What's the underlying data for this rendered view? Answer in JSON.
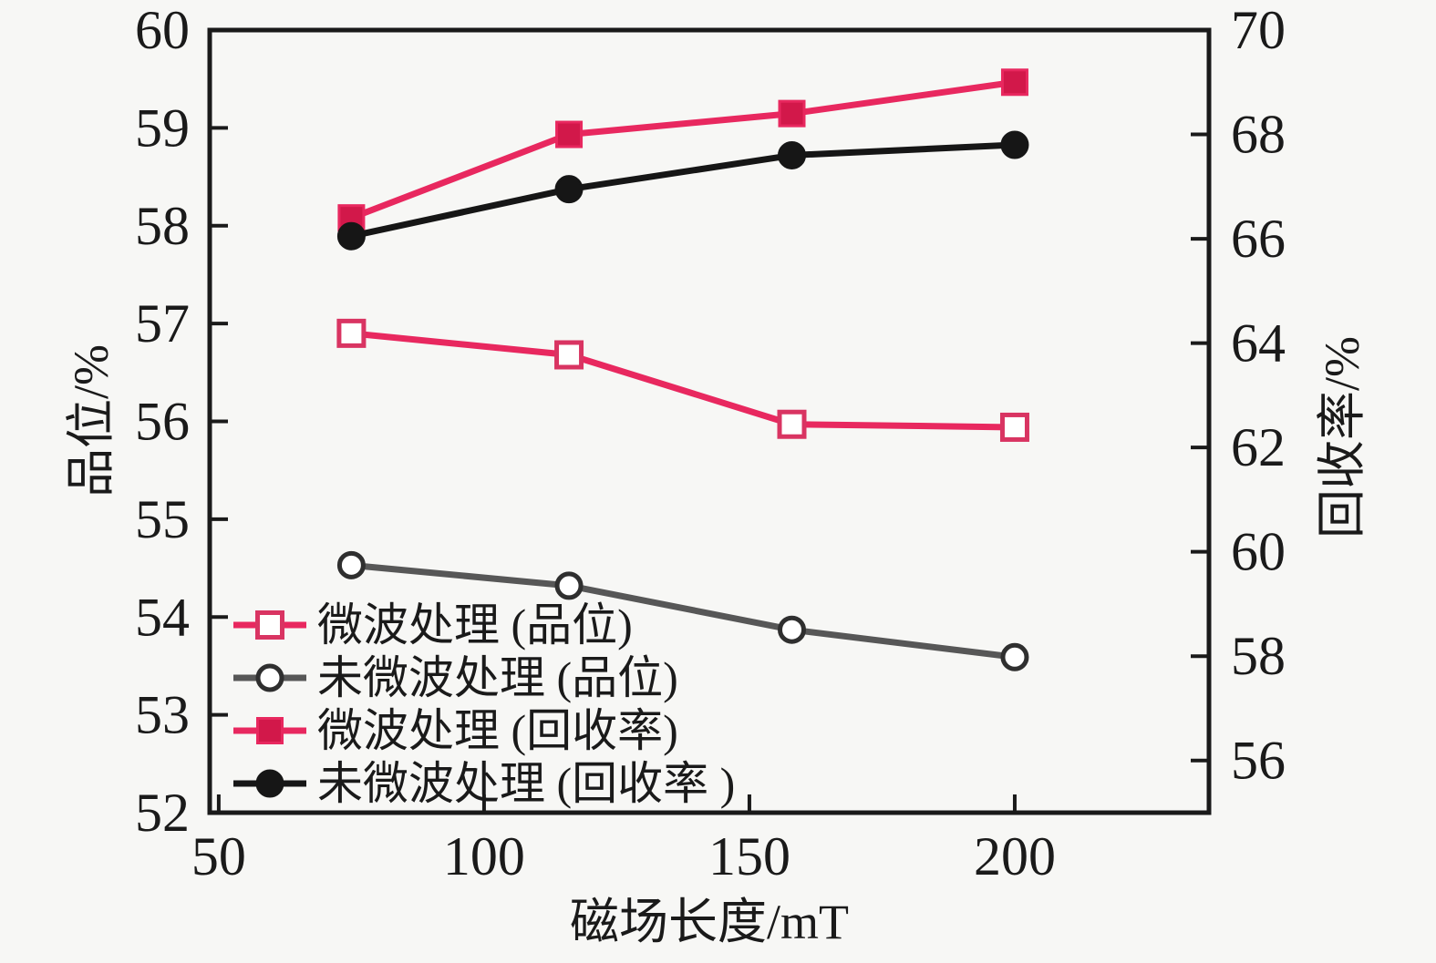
{
  "figure": {
    "background": "#f7f7f5",
    "axis_color": "#1a1a1a"
  },
  "chart_data": {
    "type": "line",
    "title": "",
    "xlabel": "磁场长度/mT",
    "ylabel_left": "品位/%",
    "ylabel_right": "回收率/%",
    "x": [
      75,
      116,
      158,
      200
    ],
    "x_ticks": [
      50,
      100,
      150,
      200
    ],
    "x_range": [
      48.3,
      236.6
    ],
    "left_range": [
      52,
      60
    ],
    "left_ticks": [
      60,
      59,
      58,
      57,
      56,
      55,
      54,
      53,
      52
    ],
    "right_range": [
      55,
      70
    ],
    "right_ticks": [
      70,
      68,
      66,
      64,
      62,
      60,
      58,
      56
    ],
    "grid": false,
    "legend_position": "lower-left-inside",
    "series": [
      {
        "name": "微波处理 (品位)",
        "axis": "left",
        "marker": "square-open",
        "color": "#e8285f",
        "marker_fill": "#ffffff",
        "marker_stroke": "#d93462",
        "values": [
          56.9,
          56.68,
          55.97,
          55.94
        ]
      },
      {
        "name": "未微波处理 (品位)",
        "axis": "left",
        "marker": "circle-open",
        "color": "#575757",
        "marker_fill": "#ffffff",
        "marker_stroke": "#2f2f2f",
        "values": [
          54.53,
          54.32,
          53.87,
          53.59
        ]
      },
      {
        "name": "微波处理 (回收率)",
        "axis": "right",
        "marker": "square-filled",
        "color": "#e8285f",
        "marker_fill": "#d2184a",
        "marker_stroke": "#e8285f",
        "values": [
          66.4,
          68.0,
          68.4,
          69.0
        ]
      },
      {
        "name": "未微波处理 (回收率 )",
        "axis": "right",
        "marker": "circle-filled",
        "color": "#161616",
        "marker_fill": "#161616",
        "marker_stroke": "#161616",
        "values": [
          66.05,
          66.95,
          67.6,
          67.8
        ]
      }
    ]
  }
}
